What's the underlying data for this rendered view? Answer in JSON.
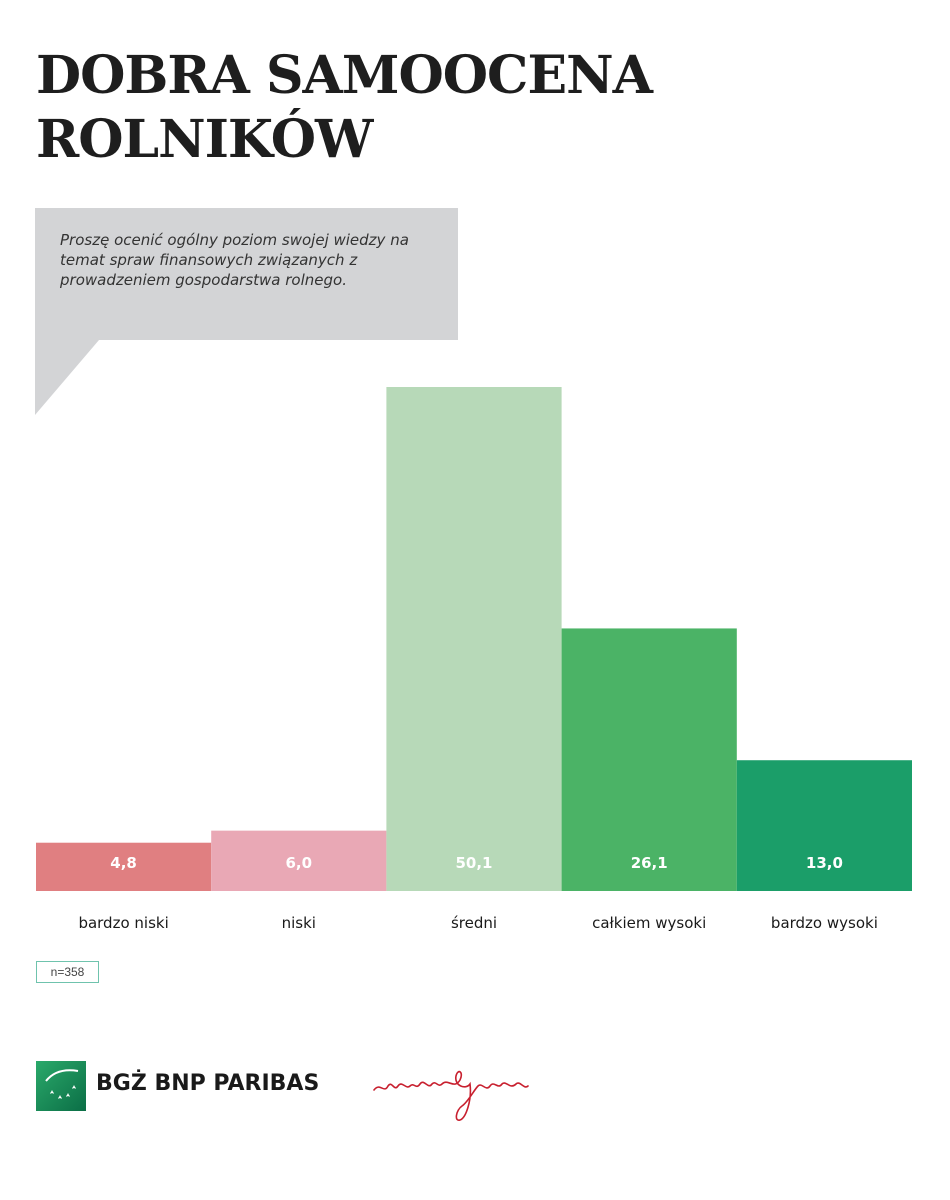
{
  "title": "DOBRA SAMOOCENA ROLNIKÓW",
  "question": "Proszę ocenić ogólny poziom swojej wiedzy na temat spraw finansowych związanych z prowadzeniem gospodarstwa rolnego.",
  "sample_note": "n=358",
  "logos": {
    "bank_name": "BGŻ BNP PARIBAS",
    "agency_name": "martin&jacob"
  },
  "chart_data": {
    "type": "bar",
    "title": "DOBRA SAMOOCENA ROLNIKÓW",
    "categories": [
      "bardzo niski",
      "niski",
      "średni",
      "całkiem wysoki",
      "bardzo wysoki"
    ],
    "values": [
      4.8,
      6.0,
      50.1,
      26.1,
      13.0
    ],
    "value_labels": [
      "4,8",
      "6,0",
      "50,1",
      "26,1",
      "13,0"
    ],
    "colors": [
      "#e07f81",
      "#e9a8b5",
      "#b7d9b8",
      "#4bb366",
      "#1b9e69"
    ],
    "xlabel": "",
    "ylabel": "",
    "ylim": [
      0,
      50.1
    ],
    "grid": false,
    "legend": "none"
  }
}
